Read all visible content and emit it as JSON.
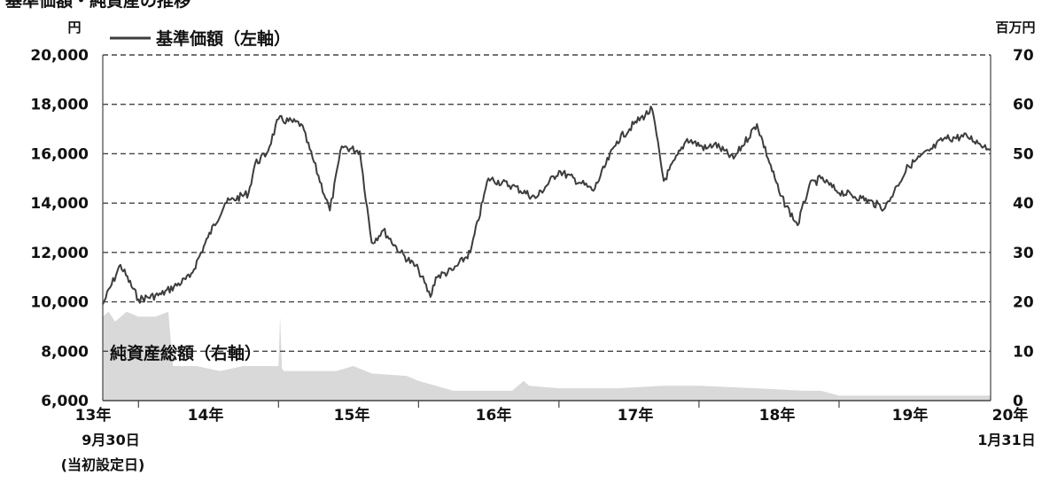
{
  "chart_data": {
    "type": "line",
    "title": "基準価額・純資産の推移",
    "left_axis_unit": "円",
    "right_axis_unit": "百万円",
    "ylim_left": [
      6000,
      20000
    ],
    "ylim_right": [
      0,
      70
    ],
    "yticks_left": [
      "20,000",
      "18,000",
      "16,000",
      "14,000",
      "12,000",
      "10,000",
      "8,000",
      "6,000"
    ],
    "yticks_right": [
      "70",
      "60",
      "50",
      "40",
      "30",
      "20",
      "10",
      "0"
    ],
    "xticks": [
      "13年",
      "14年",
      "15年",
      "16年",
      "17年",
      "18年",
      "19年",
      "20年"
    ],
    "x_start_date": "9月30日",
    "x_start_note": "(当初設定日)",
    "x_end_date": "1月31日",
    "grid": "horizontal dashed",
    "series": [
      {
        "name": "基準価額（左軸）",
        "kind": "line",
        "axis": "left",
        "color": "#3d3d3d",
        "x": [
          "2013-09-30",
          "2013-11-15",
          "2014-01-01",
          "2014-03-01",
          "2014-05-15",
          "2014-07-01",
          "2014-08-15",
          "2014-10-15",
          "2014-11-01",
          "2014-12-01",
          "2015-01-01",
          "2015-03-01",
          "2015-05-15",
          "2015-06-15",
          "2015-08-01",
          "2015-09-01",
          "2015-10-01",
          "2015-11-15",
          "2016-01-01",
          "2016-02-01",
          "2016-02-15",
          "2016-04-01",
          "2016-05-15",
          "2016-07-01",
          "2016-09-01",
          "2016-11-01",
          "2017-01-01",
          "2017-03-01",
          "2017-04-01",
          "2017-06-01",
          "2017-07-15",
          "2017-09-01",
          "2017-10-01",
          "2017-12-01",
          "2018-01-20",
          "2018-02-10",
          "2018-04-01",
          "2018-06-01",
          "2018-08-01",
          "2018-09-15",
          "2018-10-15",
          "2018-11-15",
          "2018-12-25",
          "2019-03-01",
          "2019-05-01",
          "2019-06-01",
          "2019-07-01",
          "2019-09-01",
          "2019-10-01",
          "2019-12-01",
          "2020-01-31"
        ],
        "values": [
          9900,
          11500,
          10100,
          10300,
          11000,
          12600,
          14000,
          14400,
          15600,
          16000,
          17400,
          17200,
          13700,
          16300,
          16100,
          12400,
          12900,
          12000,
          11300,
          10200,
          11000,
          11300,
          12000,
          15000,
          14700,
          14200,
          15300,
          14800,
          14500,
          16500,
          17200,
          17800,
          14900,
          16600,
          16200,
          16400,
          15800,
          17200,
          14300,
          13100,
          14700,
          15000,
          14500,
          14200,
          13800,
          14700,
          15500,
          16200,
          16600,
          16700,
          16200
        ]
      },
      {
        "name": "純資産総額（右軸）",
        "kind": "area",
        "axis": "right",
        "color": "#d9d9d9",
        "x": [
          "2013-09-30",
          "2013-10-15",
          "2013-11-01",
          "2013-12-01",
          "2014-01-01",
          "2014-02-15",
          "2014-03-20",
          "2014-04-01",
          "2014-06-01",
          "2014-08-01",
          "2014-10-01",
          "2014-12-01",
          "2015-01-01",
          "2015-01-05",
          "2015-01-10",
          "2015-01-15",
          "2015-04-01",
          "2015-06-01",
          "2015-07-15",
          "2015-09-01",
          "2015-12-01",
          "2016-01-01",
          "2016-04-01",
          "2016-07-01",
          "2016-09-01",
          "2016-10-01",
          "2016-10-15",
          "2017-01-01",
          "2017-06-01",
          "2017-10-01",
          "2018-01-01",
          "2018-06-01",
          "2018-10-01",
          "2018-11-15",
          "2019-01-01",
          "2019-06-01",
          "2019-10-01",
          "2019-12-01",
          "2020-01-31"
        ],
        "values": [
          17,
          18,
          16,
          18,
          17,
          17,
          18,
          7,
          7,
          6,
          7,
          7,
          7,
          17,
          6.5,
          6,
          6,
          6,
          7,
          5.5,
          5,
          4,
          2,
          2,
          2,
          4,
          3,
          2.5,
          2.5,
          3,
          3,
          2.5,
          2,
          2,
          1,
          1,
          1,
          1,
          1
        ]
      }
    ]
  }
}
